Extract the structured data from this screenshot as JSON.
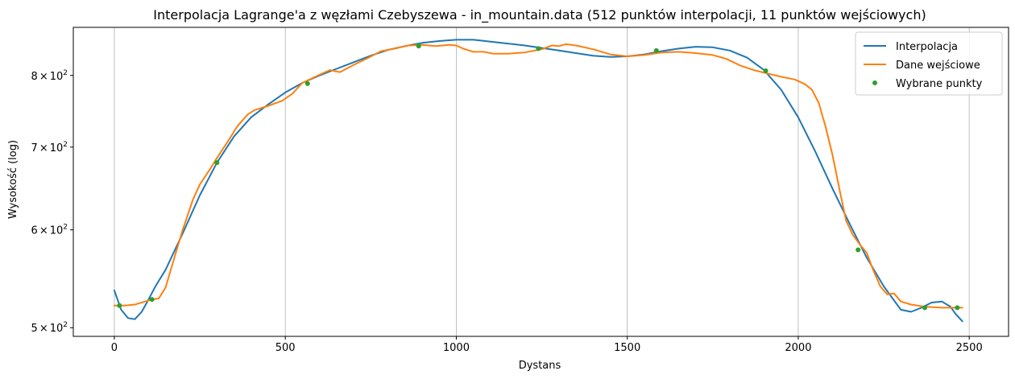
{
  "chart_data": {
    "type": "line",
    "title": "Interpolacja Lagrange'a z węzłami Czebyszewa - in_mountain.data (512 punktów interpolacji, 11 punktów wejściowych)",
    "xlabel": "Dystans",
    "ylabel": "Wysokość (log)",
    "xlim": [
      -120,
      2615
    ],
    "ylim": [
      492,
      875
    ],
    "yscale": "log",
    "grid": "x-major",
    "legend_position": "upper right",
    "x_ticks": [
      {
        "value": 0,
        "label": "0"
      },
      {
        "value": 500,
        "label": "500"
      },
      {
        "value": 1000,
        "label": "1000"
      },
      {
        "value": 1500,
        "label": "1500"
      },
      {
        "value": 2000,
        "label": "2000"
      },
      {
        "value": 2500,
        "label": "2500"
      }
    ],
    "y_ticks": [
      {
        "value": 500,
        "base": "5",
        "mult": "×",
        "power": "10",
        "exp": "2"
      },
      {
        "value": 600,
        "base": "6",
        "mult": "×",
        "power": "10",
        "exp": "2"
      },
      {
        "value": 700,
        "base": "7",
        "mult": "×",
        "power": "10",
        "exp": "2"
      },
      {
        "value": 800,
        "base": "8",
        "mult": "×",
        "power": "10",
        "exp": "2"
      }
    ],
    "series": [
      {
        "name": "Interpolacja",
        "color": "#1f77b4",
        "kind": "line",
        "x": [
          0,
          20,
          40,
          60,
          80,
          100,
          120,
          150,
          200,
          250,
          300,
          350,
          400,
          450,
          500,
          550,
          600,
          650,
          700,
          750,
          800,
          850,
          900,
          950,
          1000,
          1050,
          1100,
          1150,
          1200,
          1250,
          1300,
          1350,
          1400,
          1450,
          1500,
          1550,
          1600,
          1650,
          1700,
          1750,
          1800,
          1850,
          1900,
          1950,
          2000,
          2050,
          2100,
          2150,
          2200,
          2250,
          2300,
          2330,
          2360,
          2390,
          2420,
          2445,
          2460,
          2480
        ],
        "y": [
          536,
          517,
          509,
          508,
          515,
          527,
          540,
          557,
          596,
          640,
          680,
          714,
          740,
          758,
          775,
          789,
          800,
          810,
          820,
          830,
          839,
          845,
          850,
          853,
          855,
          855,
          852,
          849,
          846,
          842,
          838,
          834,
          830,
          828,
          829,
          832,
          837,
          841,
          844,
          843,
          838,
          827,
          808,
          779,
          740,
          694,
          648,
          607,
          570,
          540,
          517,
          515,
          519,
          524,
          525,
          520,
          513,
          506
        ]
      },
      {
        "name": "Dane wejściowe",
        "color": "#ff7f0e",
        "kind": "line",
        "x": [
          0,
          30,
          60,
          90,
          110,
          130,
          150,
          170,
          200,
          230,
          250,
          280,
          300,
          330,
          360,
          390,
          410,
          450,
          490,
          520,
          550,
          600,
          630,
          660,
          700,
          740,
          780,
          820,
          860,
          900,
          940,
          980,
          1000,
          1020,
          1050,
          1080,
          1110,
          1150,
          1200,
          1250,
          1280,
          1300,
          1320,
          1350,
          1400,
          1450,
          1500,
          1550,
          1600,
          1650,
          1700,
          1750,
          1790,
          1830,
          1870,
          1910,
          1950,
          1990,
          2020,
          2040,
          2060,
          2080,
          2100,
          2120,
          2140,
          2160,
          2180,
          2200,
          2220,
          2240,
          2260,
          2280,
          2300,
          2330,
          2370,
          2420,
          2470,
          2480
        ],
        "y": [
          521,
          521,
          522,
          525,
          527,
          528,
          539,
          563,
          600,
          635,
          653,
          672,
          686,
          706,
          728,
          744,
          750,
          756,
          763,
          773,
          789,
          801,
          808,
          805,
          816,
          826,
          837,
          841,
          846,
          847,
          845,
          847,
          846,
          841,
          836,
          836,
          833,
          833,
          835,
          840,
          846,
          845,
          848,
          846,
          840,
          832,
          829,
          831,
          835,
          836,
          834,
          831,
          825,
          815,
          808,
          803,
          798,
          794,
          787,
          779,
          760,
          727,
          690,
          648,
          610,
          594,
          584,
          575,
          556,
          540,
          532,
          533,
          525,
          522,
          520,
          519,
          519,
          519
        ]
      },
      {
        "name": "Wybrane punkty",
        "color": "#2ca02c",
        "kind": "points",
        "x": [
          15,
          110,
          300,
          565,
          890,
          1240,
          1585,
          1905,
          2175,
          2370,
          2465
        ],
        "y": [
          521,
          527,
          680,
          788,
          845,
          841,
          838,
          807,
          578,
          519,
          519
        ]
      }
    ]
  }
}
